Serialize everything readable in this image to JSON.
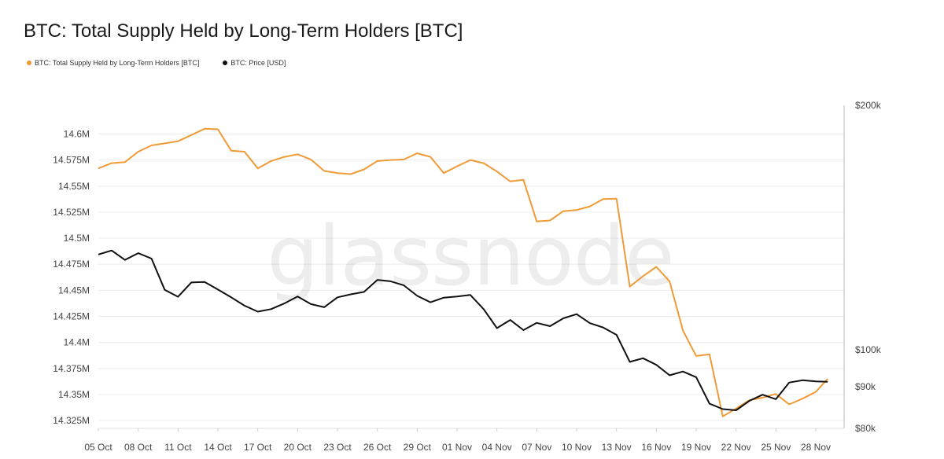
{
  "title": "BTC: Total Supply Held by Long-Term Holders [BTC]",
  "watermark": "glassnode",
  "chart_data": {
    "type": "line",
    "title": "BTC: Total Supply Held by Long-Term Holders [BTC]",
    "x_labels": [
      "05 Oct",
      "08 Oct",
      "11 Oct",
      "14 Oct",
      "17 Oct",
      "20 Oct",
      "23 Oct",
      "26 Oct",
      "29 Oct",
      "01 Nov",
      "04 Nov",
      "07 Nov",
      "10 Nov",
      "13 Nov",
      "16 Nov",
      "19 Nov",
      "22 Nov",
      "25 Nov",
      "28 Nov"
    ],
    "x_index_range": [
      0,
      54
    ],
    "y_left": {
      "ticks": [
        "14.325M",
        "14.35M",
        "14.375M",
        "14.4M",
        "14.425M",
        "14.45M",
        "14.475M",
        "14.5M",
        "14.525M",
        "14.55M",
        "14.575M",
        "14.6M"
      ],
      "tick_values": [
        14.325,
        14.35,
        14.375,
        14.4,
        14.425,
        14.45,
        14.475,
        14.5,
        14.525,
        14.55,
        14.575,
        14.6
      ],
      "range": [
        14.3175,
        14.6275
      ],
      "unit": "M BTC"
    },
    "y_right": {
      "ticks": [
        "$80k",
        "$90k",
        "$100k",
        "$200k"
      ],
      "tick_values": [
        80000,
        90000,
        100000,
        200000
      ],
      "scale": "log",
      "range": [
        80000,
        200000
      ]
    },
    "grid": true,
    "legend_position": "top-left",
    "series": [
      {
        "name": "BTC: Total Supply Held by Long-Term Holders [BTC]",
        "color": "#f09a36",
        "axis": "left",
        "values": [
          14.567,
          14.572,
          14.573,
          14.583,
          14.589,
          14.591,
          14.593,
          14.599,
          14.605,
          14.6045,
          14.584,
          14.583,
          14.567,
          14.574,
          14.578,
          14.5805,
          14.5755,
          14.5645,
          14.5625,
          14.5615,
          14.566,
          14.574,
          14.575,
          14.5755,
          14.5815,
          14.578,
          14.5625,
          14.569,
          14.575,
          14.572,
          14.564,
          14.5545,
          14.556,
          14.516,
          14.517,
          14.526,
          14.527,
          14.5305,
          14.5375,
          14.538,
          14.4535,
          14.4635,
          14.4725,
          14.4585,
          14.4115,
          14.387,
          14.3885,
          14.329,
          14.3365,
          14.3445,
          14.347,
          14.3505,
          14.3405,
          14.346,
          14.3525,
          14.365
        ],
        "x_index": [
          0,
          1,
          2,
          3,
          4,
          5,
          6,
          7,
          8,
          9,
          10,
          11,
          12,
          13,
          14,
          15,
          16,
          17,
          18,
          19,
          20,
          21,
          22,
          23,
          24,
          25,
          26,
          27,
          28,
          29,
          30,
          31,
          32,
          33,
          34,
          35,
          36,
          37,
          38,
          39,
          40,
          41,
          42,
          43,
          44,
          45,
          46,
          47,
          48,
          49,
          50,
          51,
          52,
          53,
          54,
          54.9
        ]
      },
      {
        "name": "BTC: Price [USD]",
        "color": "#111111",
        "axis": "right",
        "values": [
          131000,
          132500,
          129000,
          131500,
          129500,
          118500,
          116200,
          121000,
          121200,
          118600,
          116000,
          113300,
          111400,
          112200,
          114000,
          116300,
          113800,
          112800,
          116000,
          117000,
          117800,
          121900,
          121400,
          120000,
          116500,
          114400,
          115900,
          116300,
          116800,
          112200,
          106300,
          108800,
          105700,
          107900,
          106900,
          109300,
          110600,
          107800,
          106500,
          104300,
          96600,
          97600,
          95800,
          93000,
          94000,
          92500,
          85800,
          84500,
          84200,
          86500,
          88000,
          86900,
          91100,
          91700,
          91400,
          91300
        ],
        "x_index": [
          0,
          1,
          2,
          3,
          4,
          5,
          6,
          7,
          8,
          9,
          10,
          11,
          12,
          13,
          14,
          15,
          16,
          17,
          18,
          19,
          20,
          21,
          22,
          23,
          24,
          25,
          26,
          27,
          28,
          29,
          30,
          31,
          32,
          33,
          34,
          35,
          36,
          37,
          38,
          39,
          40,
          41,
          42,
          43,
          44,
          45,
          46,
          47,
          48,
          49,
          50,
          51,
          52,
          53,
          54,
          54.9
        ]
      }
    ]
  }
}
